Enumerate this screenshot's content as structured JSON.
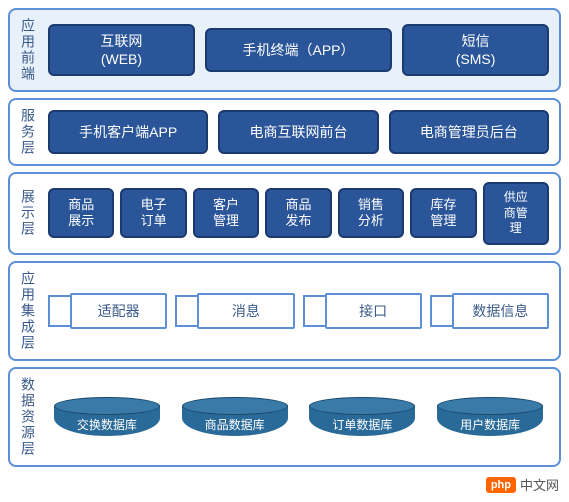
{
  "type": "layered-architecture-diagram",
  "background_color": "#ffffff",
  "layers": [
    {
      "id": "frontend",
      "label": "应用前端",
      "border_color": "#5b8fd6",
      "bg_color": "#e8f0fa",
      "label_color": "#3a5a8a",
      "boxes": [
        {
          "line1": "互联网",
          "line2": "(WEB)",
          "bg": "#2a5599",
          "border": "#1a3a70",
          "color": "#ffffff"
        },
        {
          "line1": "手机终端（APP）",
          "line2": "",
          "bg": "#2a5599",
          "border": "#1a3a70",
          "color": "#ffffff",
          "wide": true
        },
        {
          "line1": "短信",
          "line2": "(SMS)",
          "bg": "#2a5599",
          "border": "#1a3a70",
          "color": "#ffffff"
        }
      ]
    },
    {
      "id": "service",
      "label": "服务层",
      "border_color": "#5b8fd6",
      "bg_color": "#ffffff",
      "label_color": "#3a5a8a",
      "boxes": [
        {
          "line1": "手机客户端APP",
          "bg": "#2a5599",
          "border": "#1a3a70",
          "color": "#ffffff"
        },
        {
          "line1": "电商互联网前台",
          "bg": "#2a5599",
          "border": "#1a3a70",
          "color": "#ffffff"
        },
        {
          "line1": "电商管理员后台",
          "bg": "#2a5599",
          "border": "#1a3a70",
          "color": "#ffffff"
        }
      ]
    },
    {
      "id": "presentation",
      "label": "展示层",
      "border_color": "#5b8fd6",
      "bg_color": "#ffffff",
      "label_color": "#3a5a8a",
      "boxes": [
        {
          "line1": "商品",
          "line2": "展示",
          "bg": "#2a5599",
          "border": "#1a3a70",
          "color": "#ffffff"
        },
        {
          "line1": "电子",
          "line2": "订单",
          "bg": "#2a5599",
          "border": "#1a3a70",
          "color": "#ffffff"
        },
        {
          "line1": "客户",
          "line2": "管理",
          "bg": "#2a5599",
          "border": "#1a3a70",
          "color": "#ffffff"
        },
        {
          "line1": "商品",
          "line2": "发布",
          "bg": "#2a5599",
          "border": "#1a3a70",
          "color": "#ffffff"
        },
        {
          "line1": "销售",
          "line2": "分析",
          "bg": "#2a5599",
          "border": "#1a3a70",
          "color": "#ffffff"
        },
        {
          "line1": "库存",
          "line2": "管理",
          "bg": "#2a5599",
          "border": "#1a3a70",
          "color": "#ffffff"
        },
        {
          "line1": "供应",
          "line2": "商管",
          "line3": "理",
          "bg": "#2a5599",
          "border": "#1a3a70",
          "color": "#ffffff"
        }
      ]
    },
    {
      "id": "integration",
      "label": "应用集成层",
      "border_color": "#5b8fd6",
      "bg_color": "#ffffff",
      "label_color": "#3a5a8a",
      "chain_border": "#5b8fd6",
      "chain_text_color": "#3a5a8a",
      "chain": [
        {
          "label": "适配器"
        },
        {
          "label": "消息"
        },
        {
          "label": "接口"
        },
        {
          "label": "数据信息"
        }
      ]
    },
    {
      "id": "data",
      "label": "数据资源层",
      "border_color": "#5b8fd6",
      "bg_color": "#ffffff",
      "label_color": "#3a5a8a",
      "cyl_top_color": "#3a7aa8",
      "cyl_body_color": "#2a6a98",
      "cyl_border": "#1a4a70",
      "cylinders": [
        {
          "label": "交换数据库"
        },
        {
          "label": "商品数据库"
        },
        {
          "label": "订单数据库"
        },
        {
          "label": "用户数据库"
        }
      ]
    }
  ],
  "watermark": {
    "badge": "php",
    "text": "中文网"
  }
}
